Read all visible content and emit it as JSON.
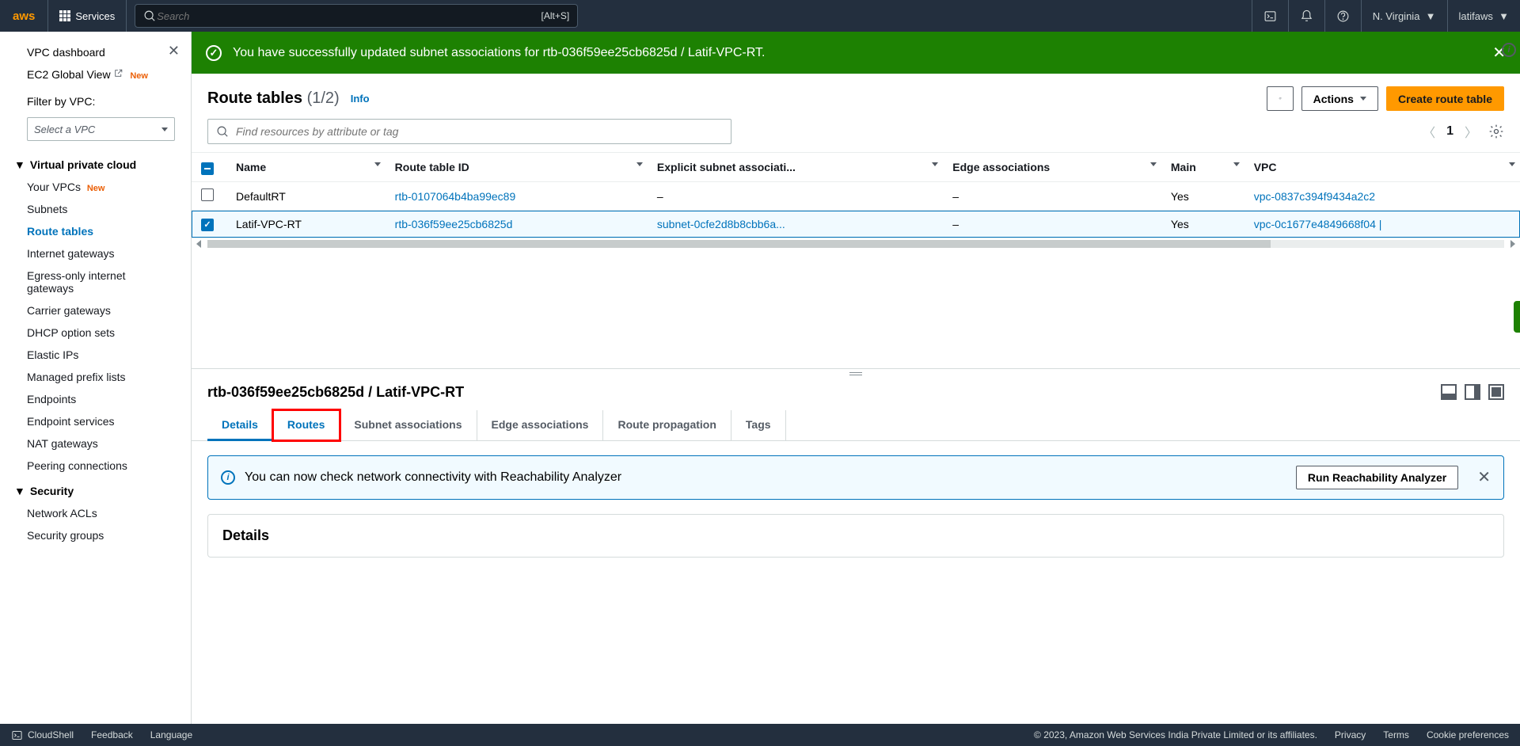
{
  "topnav": {
    "services": "Services",
    "search_placeholder": "Search",
    "search_kbd": "[Alt+S]",
    "region": "N. Virginia",
    "account": "latifaws"
  },
  "sidebar": {
    "dashboard": "VPC dashboard",
    "global_view": "EC2 Global View",
    "new_badge": "New",
    "filter_label": "Filter by VPC:",
    "filter_placeholder": "Select a VPC",
    "section_vpc": "Virtual private cloud",
    "items_vpc": [
      {
        "label": "Your VPCs",
        "new": true
      },
      {
        "label": "Subnets"
      },
      {
        "label": "Route tables",
        "active": true
      },
      {
        "label": "Internet gateways"
      },
      {
        "label": "Egress-only internet gateways"
      },
      {
        "label": "Carrier gateways"
      },
      {
        "label": "DHCP option sets"
      },
      {
        "label": "Elastic IPs"
      },
      {
        "label": "Managed prefix lists"
      },
      {
        "label": "Endpoints"
      },
      {
        "label": "Endpoint services"
      },
      {
        "label": "NAT gateways"
      },
      {
        "label": "Peering connections"
      }
    ],
    "section_security": "Security",
    "items_sec": [
      {
        "label": "Network ACLs"
      },
      {
        "label": "Security groups"
      }
    ]
  },
  "banner": {
    "message": "You have successfully updated subnet associations for rtb-036f59ee25cb6825d / Latif-VPC-RT."
  },
  "page": {
    "title": "Route tables",
    "count": "(1/2)",
    "info": "Info",
    "actions": "Actions",
    "create": "Create route table",
    "filter_placeholder": "Find resources by attribute or tag",
    "page_num": "1"
  },
  "table": {
    "cols": [
      "Name",
      "Route table ID",
      "Explicit subnet associati...",
      "Edge associations",
      "Main",
      "VPC"
    ],
    "rows": [
      {
        "selected": false,
        "name": "DefaultRT",
        "rtid": "rtb-0107064b4ba99ec89",
        "subnet": "–",
        "edge": "–",
        "main": "Yes",
        "vpc": "vpc-0837c394f9434a2c2"
      },
      {
        "selected": true,
        "name": "Latif-VPC-RT",
        "rtid": "rtb-036f59ee25cb6825d",
        "subnet": "subnet-0cfe2d8b8cbb6a...",
        "edge": "–",
        "main": "Yes",
        "vpc": "vpc-0c1677e4849668f04 |"
      }
    ]
  },
  "detail": {
    "title": "rtb-036f59ee25cb6825d / Latif-VPC-RT",
    "tabs": [
      "Details",
      "Routes",
      "Subnet associations",
      "Edge associations",
      "Route propagation",
      "Tags"
    ],
    "callout": "You can now check network connectivity with Reachability Analyzer",
    "run": "Run Reachability Analyzer",
    "section_heading": "Details"
  },
  "footer": {
    "cloudshell": "CloudShell",
    "feedback": "Feedback",
    "language": "Language",
    "copyright": "© 2023, Amazon Web Services India Private Limited or its affiliates.",
    "privacy": "Privacy",
    "terms": "Terms",
    "cookie": "Cookie preferences"
  }
}
